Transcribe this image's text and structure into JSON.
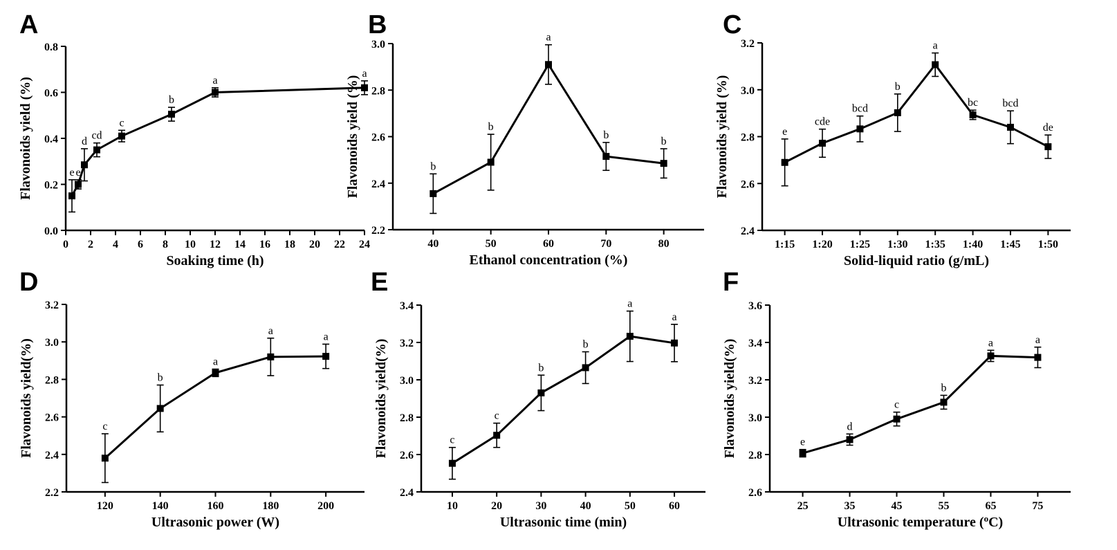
{
  "chart_data": [
    {
      "panel": "A",
      "type": "line",
      "xlabel": "Soaking time (h)",
      "ylabel": "Flavonoids yield (%)",
      "xlim": [
        0,
        24
      ],
      "xticks": [
        0,
        2,
        4,
        6,
        8,
        10,
        12,
        14,
        16,
        18,
        20,
        22,
        24
      ],
      "xtick_labels": [
        "0",
        "2",
        "4",
        "6",
        "8",
        "10",
        "12",
        "14",
        "16",
        "18",
        "20",
        "22",
        "24"
      ],
      "ylim": [
        0.0,
        0.8
      ],
      "yticks": [
        0.0,
        0.2,
        0.4,
        0.6,
        0.8
      ],
      "ytick_labels": [
        "0.0",
        "0.2",
        "0.4",
        "0.6",
        "0.8"
      ],
      "x": [
        0.5,
        1,
        1.5,
        2.5,
        4.5,
        8.5,
        12,
        24
      ],
      "y": [
        0.15,
        0.2,
        0.285,
        0.35,
        0.41,
        0.505,
        0.6,
        0.62
      ],
      "error": [
        0.07,
        0.02,
        0.07,
        0.03,
        0.025,
        0.03,
        0.02,
        0.03
      ],
      "labels": [
        "e",
        "e",
        "d",
        "cd",
        "c",
        "b",
        "a",
        "a"
      ]
    },
    {
      "panel": "B",
      "type": "line",
      "xlabel": "Ethanol concentration (%)",
      "ylabel": "Flavonoids yield (%)",
      "xlim": [
        33,
        87
      ],
      "xticks": [
        40,
        50,
        60,
        70,
        80
      ],
      "xtick_labels": [
        "40",
        "50",
        "60",
        "70",
        "80"
      ],
      "ylim": [
        2.2,
        3.0
      ],
      "yticks": [
        2.2,
        2.4,
        2.6,
        2.8,
        3.0
      ],
      "ytick_labels": [
        "2.2",
        "2.4",
        "2.6",
        "2.8",
        "3.0"
      ],
      "x": [
        40,
        50,
        60,
        70,
        80
      ],
      "y": [
        2.355,
        2.49,
        2.91,
        2.515,
        2.485
      ],
      "error": [
        0.085,
        0.12,
        0.085,
        0.06,
        0.063
      ],
      "labels": [
        "b",
        "b",
        "a",
        "b",
        "b"
      ]
    },
    {
      "panel": "C",
      "type": "line",
      "xlabel": "Solid-liquid ratio (g/mL)",
      "ylabel": "Flavonoids yield (%)",
      "xlim": [
        0.4,
        8.6
      ],
      "xticks": [
        1,
        2,
        3,
        4,
        5,
        6,
        7,
        8
      ],
      "xtick_labels": [
        "1:15",
        "1:20",
        "1:25",
        "1:30",
        "1:35",
        "1:40",
        "1:45",
        "1:50"
      ],
      "ylim": [
        2.4,
        3.2
      ],
      "yticks": [
        2.4,
        2.6,
        2.8,
        3.0,
        3.2
      ],
      "ytick_labels": [
        "2.4",
        "2.6",
        "2.8",
        "3.0",
        "3.2"
      ],
      "x": [
        1,
        2,
        3,
        4,
        5,
        6,
        7,
        8
      ],
      "y": [
        2.69,
        2.772,
        2.833,
        2.902,
        3.107,
        2.893,
        2.84,
        2.757
      ],
      "error": [
        0.1,
        0.06,
        0.055,
        0.08,
        0.05,
        0.02,
        0.07,
        0.05
      ],
      "labels": [
        "e",
        "cde",
        "bcd",
        "b",
        "a",
        "bc",
        "bcd",
        "de"
      ]
    },
    {
      "panel": "D",
      "type": "line",
      "xlabel": "Ultrasonic power (W)",
      "ylabel": "Flavonoids yield(%)",
      "xlim": [
        106,
        214
      ],
      "xticks": [
        120,
        140,
        160,
        180,
        200
      ],
      "xtick_labels": [
        "120",
        "140",
        "160",
        "180",
        "200"
      ],
      "ylim": [
        2.2,
        3.2
      ],
      "yticks": [
        2.2,
        2.4,
        2.6,
        2.8,
        3.0,
        3.2
      ],
      "ytick_labels": [
        "2.2",
        "2.4",
        "2.6",
        "2.8",
        "3.0",
        "3.2"
      ],
      "x": [
        120,
        140,
        160,
        180,
        200
      ],
      "y": [
        2.38,
        2.645,
        2.835,
        2.92,
        2.923
      ],
      "error": [
        0.13,
        0.125,
        0.02,
        0.1,
        0.065
      ],
      "labels": [
        "c",
        "b",
        "a",
        "a",
        "a"
      ]
    },
    {
      "panel": "E",
      "type": "line",
      "xlabel": "Ultrasonic time (min)",
      "ylabel": "Flavonoids yield(%)",
      "xlim": [
        3,
        67
      ],
      "xticks": [
        10,
        20,
        30,
        40,
        50,
        60
      ],
      "xtick_labels": [
        "10",
        "20",
        "30",
        "40",
        "50",
        "60"
      ],
      "ylim": [
        2.4,
        3.4
      ],
      "yticks": [
        2.4,
        2.6,
        2.8,
        3.0,
        3.2,
        3.4
      ],
      "ytick_labels": [
        "2.4",
        "2.6",
        "2.8",
        "3.0",
        "3.2",
        "3.4"
      ],
      "x": [
        10,
        20,
        30,
        40,
        50,
        60
      ],
      "y": [
        2.553,
        2.703,
        2.93,
        3.065,
        3.233,
        3.197
      ],
      "error": [
        0.085,
        0.065,
        0.095,
        0.085,
        0.135,
        0.1
      ],
      "labels": [
        "c",
        "c",
        "b",
        "b",
        "a",
        "a"
      ]
    },
    {
      "panel": "F",
      "type": "line",
      "xlabel": "Ultrasonic temperature (",
      "xlabel_sup": "o",
      "xlabel_end": "C)",
      "ylabel": "Flavonoids yield(%)",
      "xlim": [
        18,
        82
      ],
      "xticks": [
        25,
        35,
        45,
        55,
        65,
        75
      ],
      "xtick_labels": [
        "25",
        "35",
        "45",
        "55",
        "65",
        "75"
      ],
      "ylim": [
        2.6,
        3.6
      ],
      "yticks": [
        2.6,
        2.8,
        3.0,
        3.2,
        3.4,
        3.6
      ],
      "ytick_labels": [
        "2.6",
        "2.8",
        "3.0",
        "3.2",
        "3.4",
        "3.6"
      ],
      "x": [
        25,
        35,
        45,
        55,
        65,
        75
      ],
      "y": [
        2.807,
        2.88,
        2.99,
        3.08,
        3.328,
        3.32
      ],
      "error": [
        0.02,
        0.03,
        0.037,
        0.037,
        0.03,
        0.055
      ],
      "labels": [
        "e",
        "d",
        "c",
        "b",
        "a",
        "a"
      ]
    }
  ],
  "style": {
    "line_color": "#000000",
    "marker": "square"
  }
}
